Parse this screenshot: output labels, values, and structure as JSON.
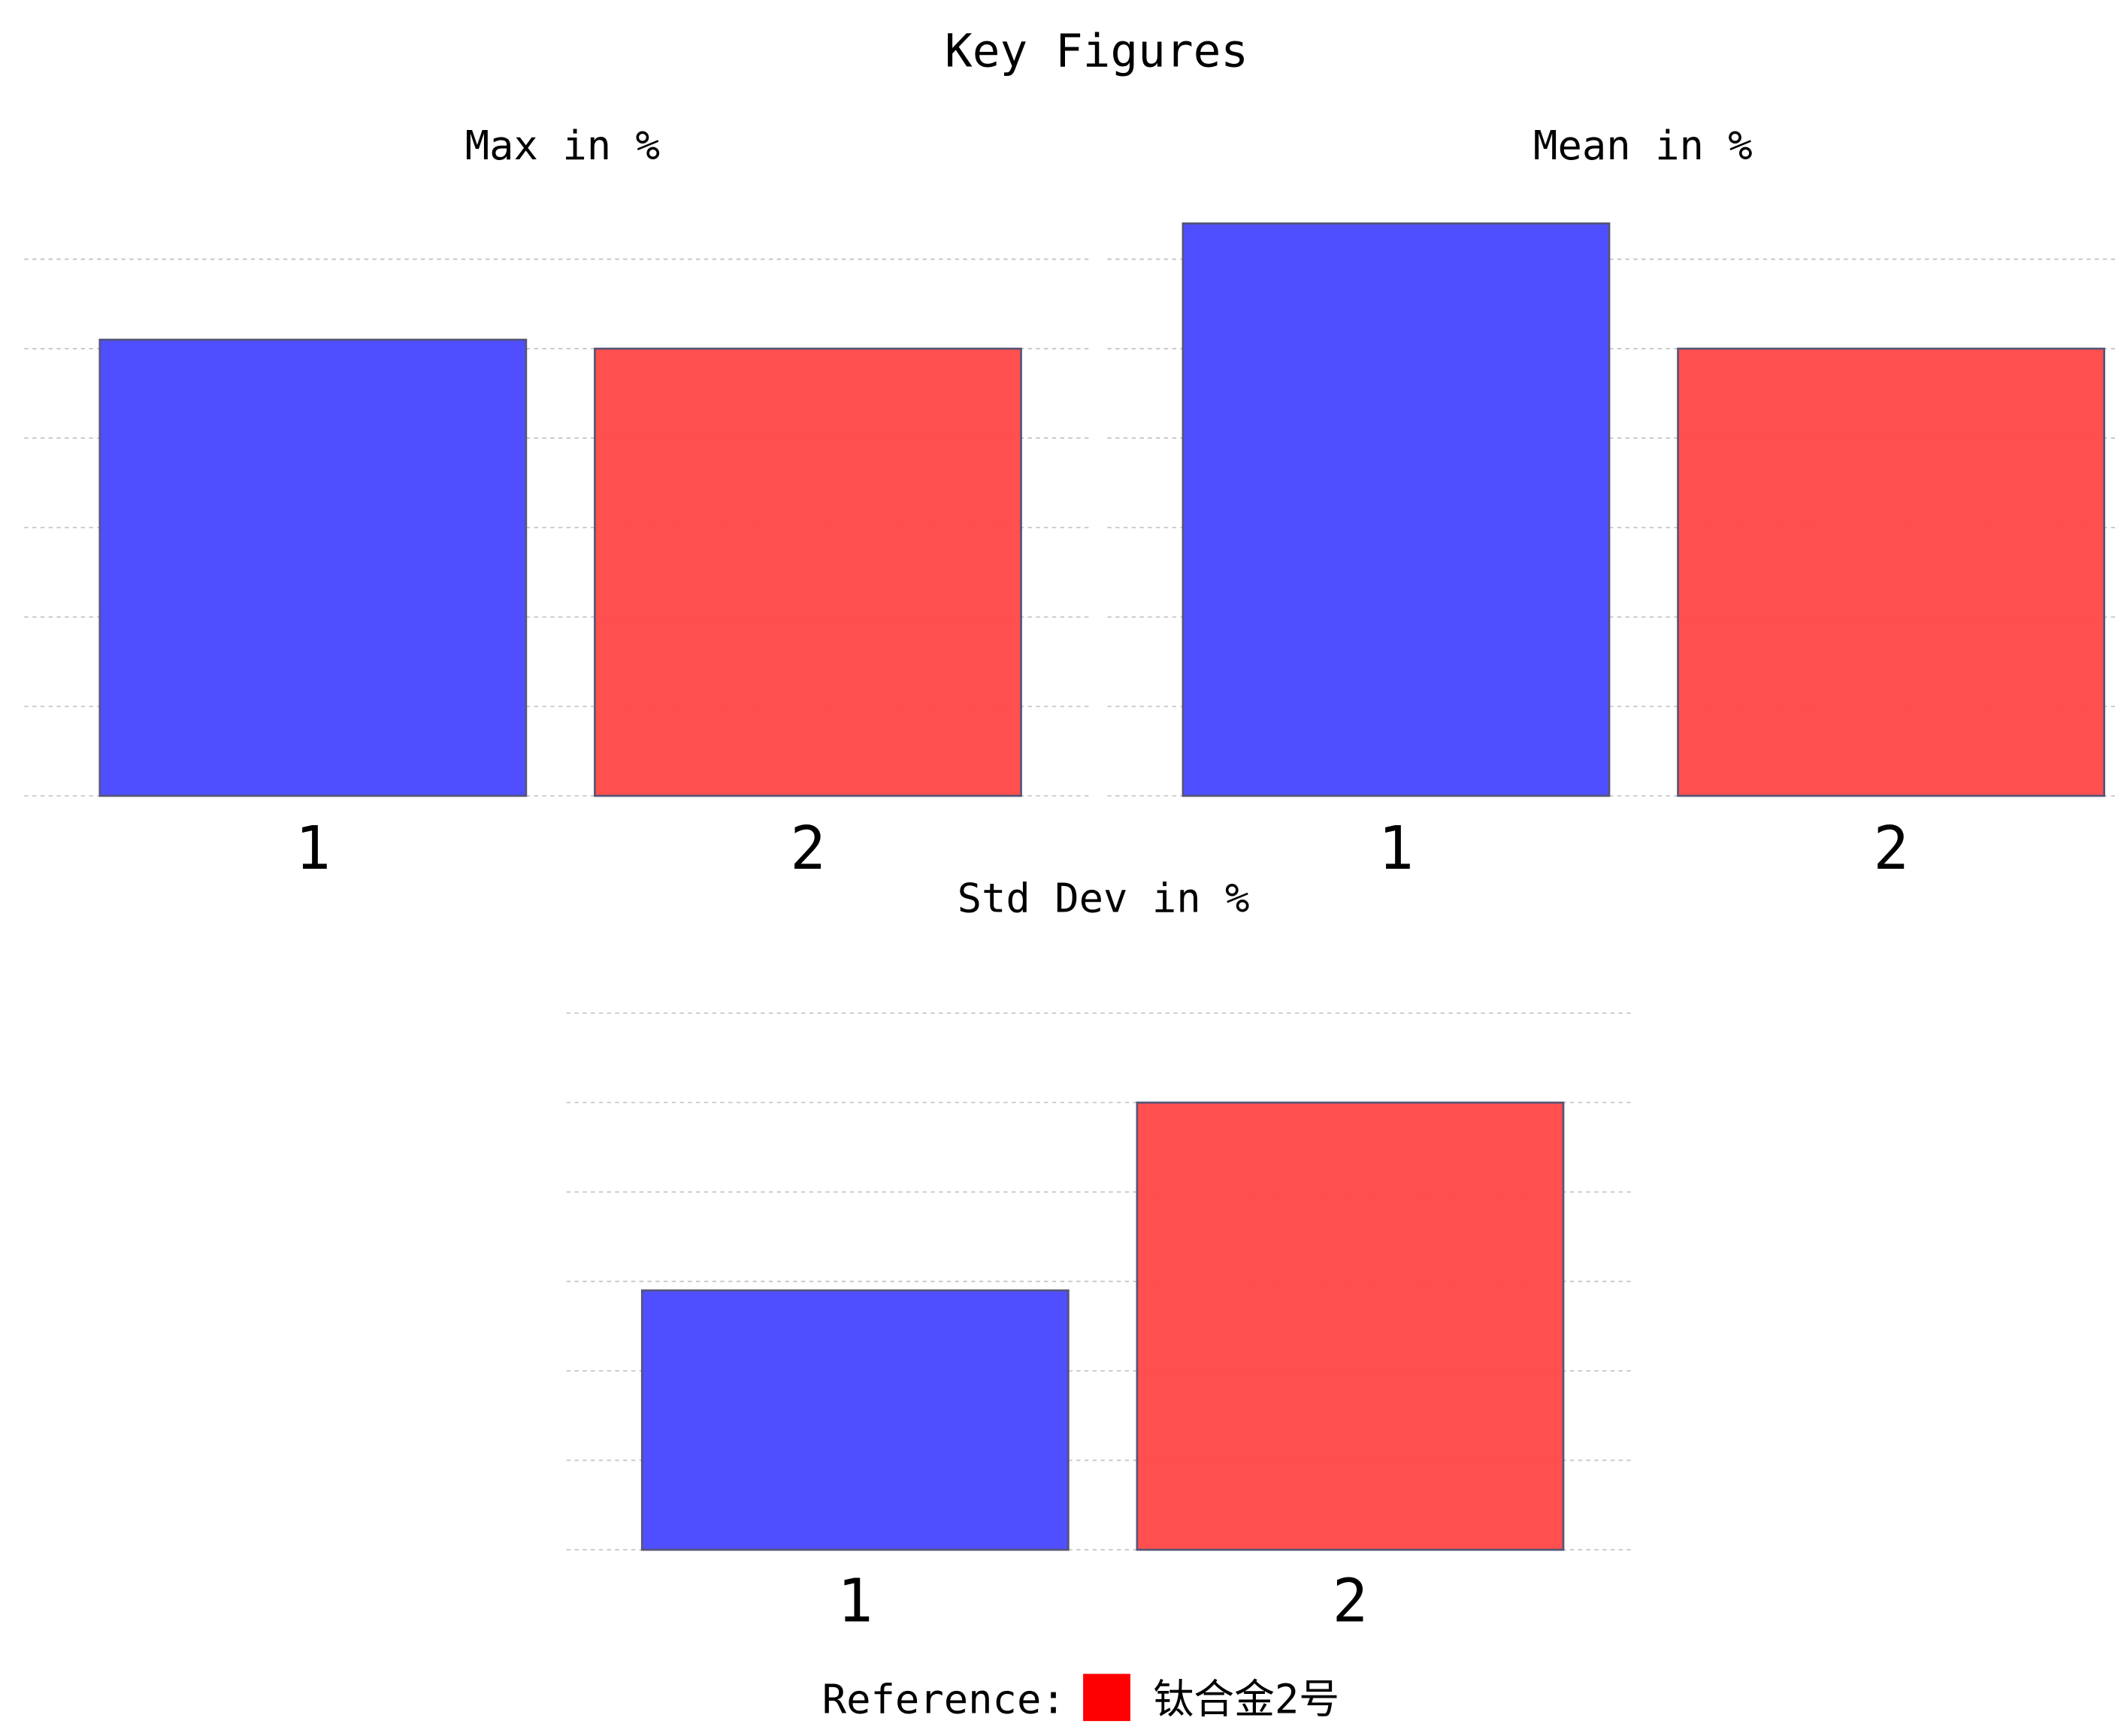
{
  "title": "Key Figures",
  "legend": {
    "label": "Reference:",
    "name": "钛合金2号",
    "color": "#ff0000"
  },
  "chart_data": [
    {
      "type": "bar",
      "title": "Max in %",
      "categories": [
        "1",
        "2"
      ],
      "values": [
        5.1,
        5.0
      ],
      "colors": [
        "#4b4bff",
        "#ff4b4b"
      ],
      "ylim": [
        0,
        6.4
      ],
      "yticks": [
        0,
        1,
        2,
        3,
        4,
        5,
        6
      ],
      "grid": true
    },
    {
      "type": "bar",
      "title": "Mean in %",
      "categories": [
        "1",
        "2"
      ],
      "values": [
        6.4,
        5.0
      ],
      "colors": [
        "#4b4bff",
        "#ff4b4b"
      ],
      "ylim": [
        0,
        6.4
      ],
      "yticks": [
        0,
        1,
        2,
        3,
        4,
        5,
        6
      ],
      "grid": true
    },
    {
      "type": "bar",
      "title": "Std Dev in %",
      "categories": [
        "1",
        "2"
      ],
      "values": [
        2.9,
        5.0
      ],
      "colors": [
        "#4b4bff",
        "#ff4b4b"
      ],
      "ylim": [
        0,
        6.4
      ],
      "yticks": [
        0,
        1,
        2,
        3,
        4,
        5,
        6
      ],
      "grid": true
    }
  ]
}
